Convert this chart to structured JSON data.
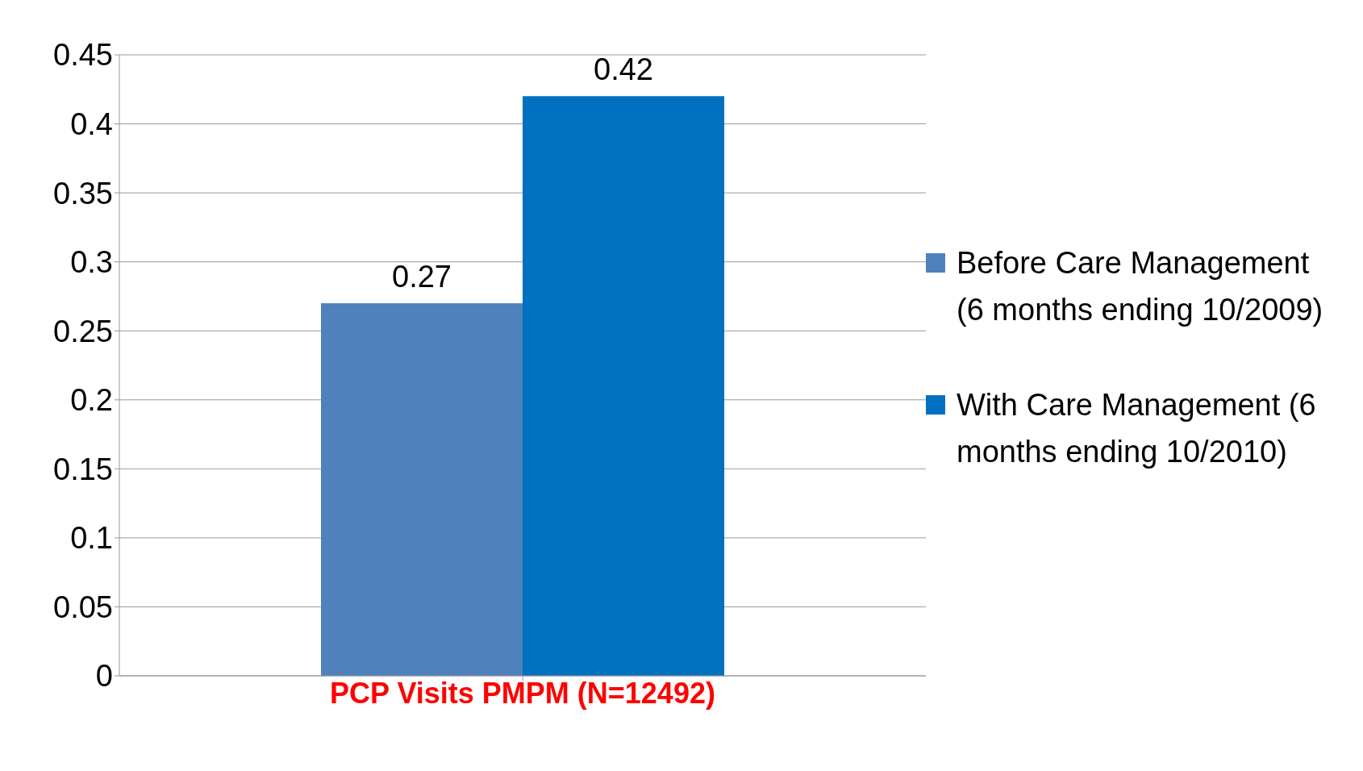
{
  "chart_data": {
    "type": "bar",
    "categories": [
      "PCP Visits PMPM (N=12492)"
    ],
    "series": [
      {
        "name": "Before Care Management (6 months ending 10/2009)",
        "color": "#4f81bd",
        "values": [
          0.27
        ]
      },
      {
        "name": "With Care Management (6 months ending 10/2010)",
        "color": "#0070c0",
        "values": [
          0.42
        ]
      }
    ],
    "ylim": [
      0,
      0.45
    ],
    "yticks": [
      0,
      0.05,
      0.1,
      0.15,
      0.2,
      0.25,
      0.3,
      0.35,
      0.4,
      0.45
    ],
    "grid": "y",
    "legend": "right",
    "data_labels": true
  }
}
